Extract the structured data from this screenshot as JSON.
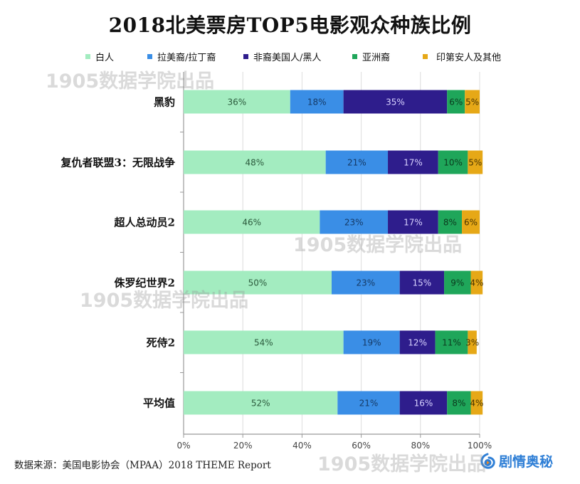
{
  "chart_data": {
    "type": "bar",
    "orientation": "horizontal",
    "stacked": true,
    "title": "2018北美票房TOP5电影观众种族比例",
    "xlabel": "",
    "ylabel": "",
    "xlim": [
      0,
      100
    ],
    "x_ticks": [
      "0%",
      "20%",
      "40%",
      "60%",
      "80%",
      "100%"
    ],
    "x_tick_values": [
      0,
      20,
      40,
      60,
      80,
      100
    ],
    "grid": true,
    "legend_position": "top",
    "categories": [
      "黑豹",
      "复仇者联盟3：无限战争",
      "超人总动员2",
      "侏罗纪世界2",
      "死侍2",
      "平均值"
    ],
    "series": [
      {
        "name": "白人",
        "color": "#a3ecc0",
        "label_color": "#2b5a3c",
        "values": [
          36,
          48,
          46,
          50,
          54,
          52
        ]
      },
      {
        "name": "拉美裔/拉丁裔",
        "color": "#3a8ee6",
        "label_color": "#153a66",
        "values": [
          18,
          21,
          23,
          23,
          19,
          21
        ]
      },
      {
        "name": "非裔美国人/黑人",
        "color": "#2e1d8c",
        "label_color": "#d8d2ff",
        "values": [
          35,
          17,
          17,
          15,
          12,
          16
        ]
      },
      {
        "name": "亚洲裔",
        "color": "#1fa65a",
        "label_color": "#0b3a1e",
        "values": [
          6,
          10,
          8,
          9,
          11,
          8
        ]
      },
      {
        "name": "印第安人及其他",
        "color": "#e6a817",
        "label_color": "#4a3500",
        "values": [
          5,
          5,
          6,
          4,
          3,
          4
        ]
      }
    ]
  },
  "source_text": "数据来源：美国电影协会（MPAA）2018 THEME Report",
  "watermark_text": "1905数据学院出品",
  "brand_text": "剧情奥秘"
}
